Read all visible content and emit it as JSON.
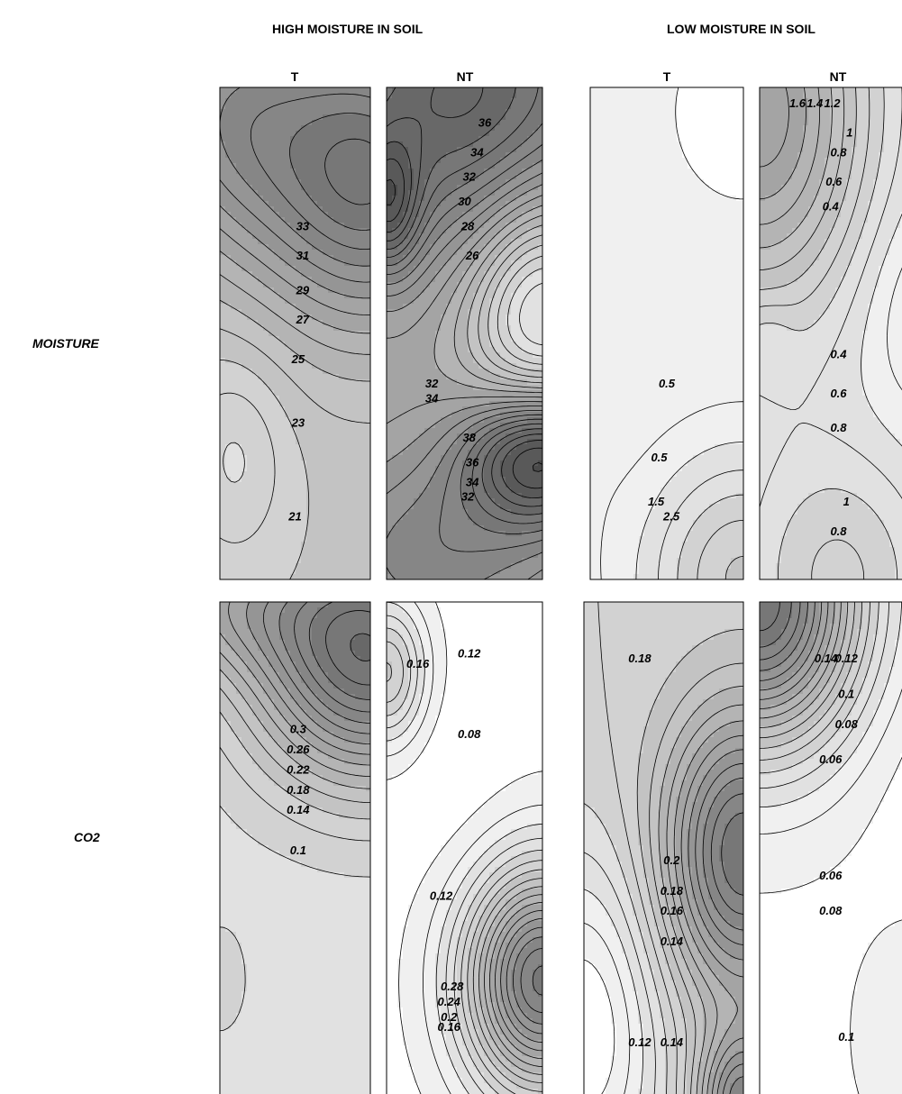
{
  "chart_data": {
    "type": "contour",
    "group_titles": [
      "HIGH MOISTURE IN SOIL",
      "LOW MOISTURE IN SOIL"
    ],
    "row_labels": [
      "MOISTURE",
      "CO2"
    ],
    "column_labels": [
      "T",
      "NT",
      "T",
      "NT"
    ],
    "panels": [
      {
        "id": "moisture-high-t",
        "group": "HIGH MOISTURE IN SOIL",
        "variable": "MOISTURE",
        "treatment": "T",
        "contour_labels": [
          "33",
          "31",
          "29",
          "27",
          "25",
          "23",
          "21"
        ]
      },
      {
        "id": "moisture-high-nt",
        "group": "HIGH MOISTURE IN SOIL",
        "variable": "MOISTURE",
        "treatment": "NT",
        "contour_labels": [
          "36",
          "34",
          "32",
          "30",
          "28",
          "26",
          "32",
          "34",
          "38",
          "36",
          "34",
          "32"
        ]
      },
      {
        "id": "moisture-low-t",
        "group": "LOW MOISTURE IN SOIL",
        "variable": "MOISTURE",
        "treatment": "T",
        "contour_labels": [
          "0.5",
          "0.5",
          "1.5",
          "2.5"
        ]
      },
      {
        "id": "moisture-low-nt",
        "group": "LOW MOISTURE IN SOIL",
        "variable": "MOISTURE",
        "treatment": "NT",
        "contour_labels": [
          "1.6",
          "1.4",
          "1.2",
          "1",
          "0.8",
          "0.6",
          "0.4",
          "0.4",
          "0.6",
          "0.8",
          "1",
          "0.8"
        ]
      },
      {
        "id": "co2-high-t",
        "group": "HIGH MOISTURE IN SOIL",
        "variable": "CO2",
        "treatment": "T",
        "contour_labels": [
          "0.3",
          "0.26",
          "0.22",
          "0.18",
          "0.14",
          "0.1"
        ]
      },
      {
        "id": "co2-high-nt",
        "group": "HIGH MOISTURE IN SOIL",
        "variable": "CO2",
        "treatment": "NT",
        "contour_labels": [
          "0.16",
          "0.12",
          "0.08",
          "0.12",
          "0.28",
          "0.24",
          "0.2",
          "0.16"
        ]
      },
      {
        "id": "co2-low-t",
        "group": "LOW MOISTURE IN SOIL",
        "variable": "CO2",
        "treatment": "T",
        "contour_labels": [
          "0.18",
          "0.2",
          "0.18",
          "0.16",
          "0.14",
          "0.12",
          "0.14"
        ]
      },
      {
        "id": "co2-low-nt",
        "group": "LOW MOISTURE IN SOIL",
        "variable": "CO2",
        "treatment": "NT",
        "contour_labels": [
          "0.14",
          "0.12",
          "0.1",
          "0.08",
          "0.06",
          "0.06",
          "0.08",
          "0.1"
        ]
      }
    ],
    "colormap": [
      "#ffffff",
      "#2a2a2a"
    ],
    "line_color": "#000000"
  }
}
